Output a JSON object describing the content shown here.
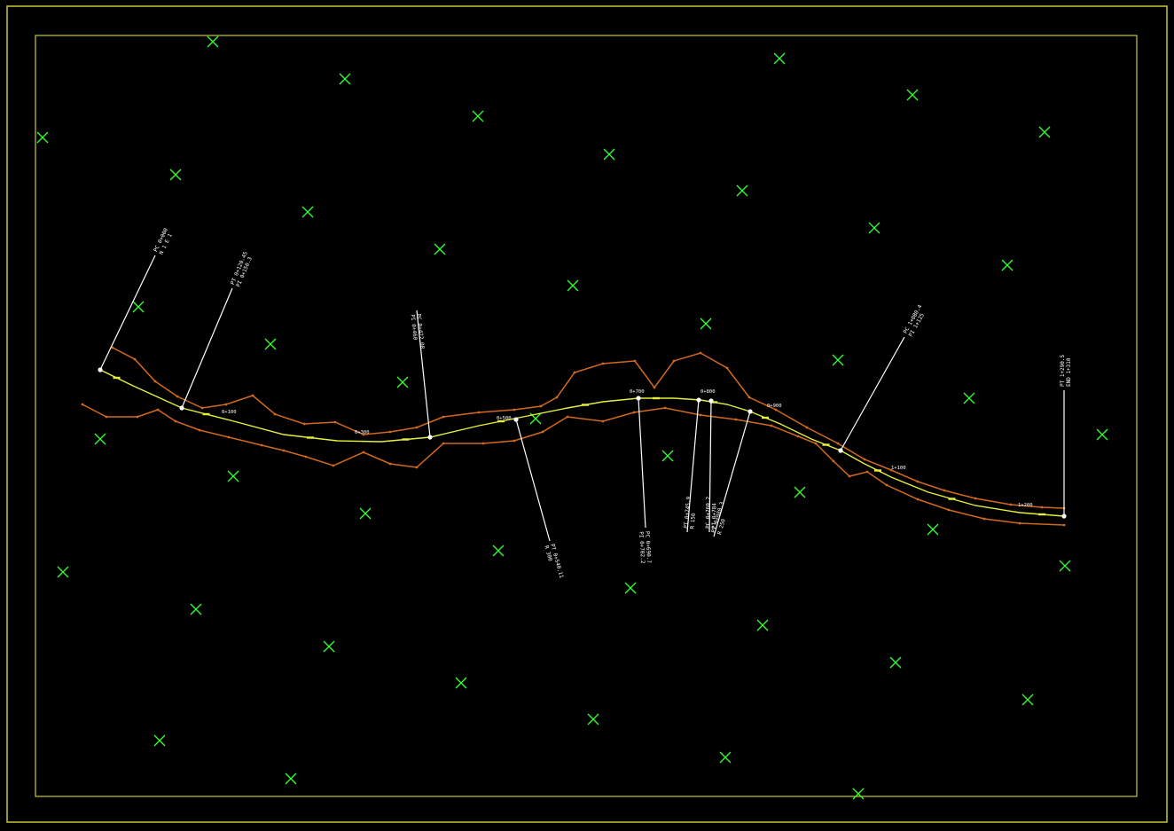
{
  "drawing": {
    "background": "#000000",
    "frame_color": "#c8c832",
    "alignment_color": "#e6f03c",
    "edge_color": "#d2691e",
    "grid_color": "#32ff32",
    "leader_color": "#ffffff"
  },
  "callouts": [
    {
      "id": "begin",
      "text1": "PC 0+000",
      "text2": "N 1 E 1"
    },
    {
      "id": "pi-1",
      "text1": "PT 0+120.45",
      "text2": "PI 0+150.3"
    },
    {
      "id": "pi-2",
      "text1": "PC 0+422.08",
      "text2": "PI 0+460"
    },
    {
      "id": "pi-3",
      "text1": "PT 0+540.11",
      "text2": "R 300"
    },
    {
      "id": "pi-4",
      "text1": "PC 0+690.7",
      "text2": "PI 0+702.2"
    },
    {
      "id": "pi-5",
      "text1": "PT 0+745.9",
      "text2": "R 150"
    },
    {
      "id": "pi-6",
      "text1": "PC 0+760.2",
      "text2": "PI 0+784"
    },
    {
      "id": "pi-7",
      "text1": "PT 0+980.3",
      "text2": "R 250"
    },
    {
      "id": "pi-8",
      "text1": "PC 1+080.4",
      "text2": "PI 1+125"
    },
    {
      "id": "end",
      "text1": "PT 1+290.5",
      "text2": "END 1+310"
    }
  ],
  "stations": [
    "0+100",
    "0+300",
    "0+500",
    "0+700",
    "0+800",
    "0+900",
    "1+100",
    "1+200"
  ]
}
